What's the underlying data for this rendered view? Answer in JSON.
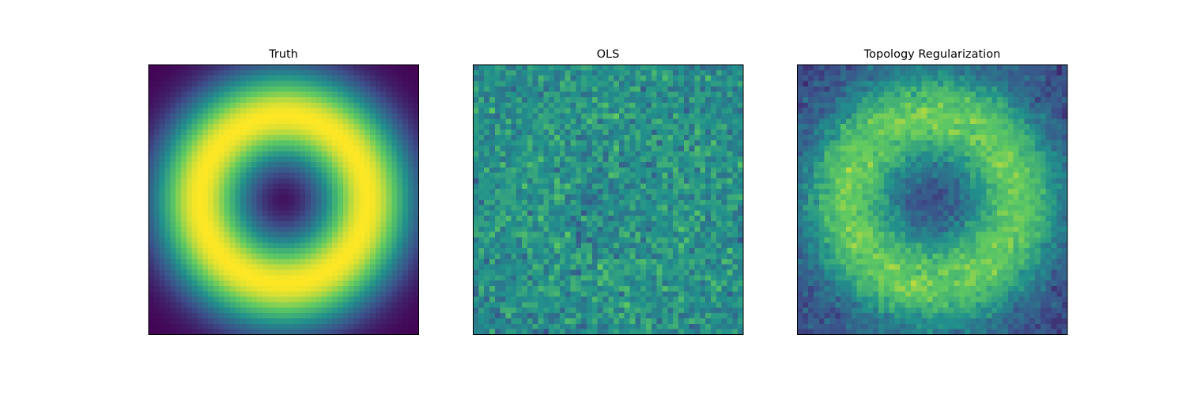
{
  "panels": [
    {
      "title": "Truth"
    },
    {
      "title": "OLS"
    },
    {
      "title": "Topology Regularization"
    }
  ]
}
